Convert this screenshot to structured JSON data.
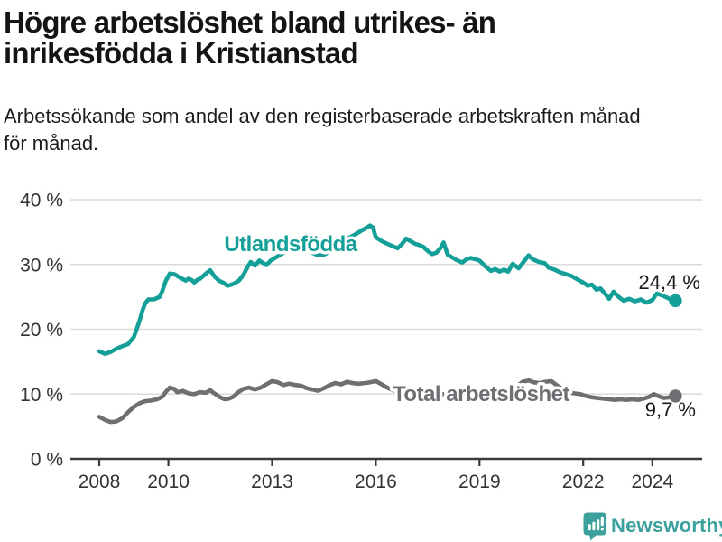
{
  "header": {
    "title": "Högre arbetslöshet bland utrikes- än\ninrikesfödda i Kristianstad",
    "subtitle": "Arbetssökande som andel av den registerbaserade arbetskraften månad\nför månad."
  },
  "chart_data": {
    "type": "line",
    "title": "Högre arbetslöshet bland utrikes- än inrikesfödda i Kristianstad",
    "subtitle": "Arbetssökande som andel av den registerbaserade arbetskraften månad för månad.",
    "xlabel": "",
    "ylabel": "",
    "unit": "%",
    "grid": true,
    "xlim": [
      2008,
      2024.67
    ],
    "ylim": [
      0,
      40
    ],
    "x_axis": {
      "ticks": [
        2008,
        2010,
        2013,
        2016,
        2019,
        2022,
        2024
      ],
      "labels": [
        "2008",
        "2010",
        "2013",
        "2016",
        "2019",
        "2022",
        "2024"
      ]
    },
    "y_axis": {
      "ticks": [
        0,
        10,
        20,
        30,
        40
      ],
      "labels": [
        "0 %",
        "10 %",
        "20 %",
        "30 %",
        "40 %"
      ]
    },
    "colors": {
      "accent_teal": "#14a098",
      "neutral_gray": "#6e6e73",
      "gridline": "#dbdbdb",
      "axis": "#3a3a3c",
      "tick_label": "#333333",
      "value_label": "#1a1a1a"
    },
    "series": [
      {
        "name": "Utlandsfödda",
        "color": "#14a098",
        "end_value": 24.4,
        "end_label": "24,4 %",
        "points": [
          [
            2008.0,
            16.6
          ],
          [
            2008.17,
            16.2
          ],
          [
            2008.33,
            16.5
          ],
          [
            2008.5,
            17.0
          ],
          [
            2008.67,
            17.4
          ],
          [
            2008.83,
            17.7
          ],
          [
            2009.0,
            18.8
          ],
          [
            2009.08,
            20.0
          ],
          [
            2009.17,
            21.4
          ],
          [
            2009.25,
            22.9
          ],
          [
            2009.33,
            24.0
          ],
          [
            2009.42,
            24.6
          ],
          [
            2009.58,
            24.6
          ],
          [
            2009.75,
            25.0
          ],
          [
            2009.83,
            26.0
          ],
          [
            2009.92,
            27.4
          ],
          [
            2010.04,
            28.6
          ],
          [
            2010.17,
            28.5
          ],
          [
            2010.33,
            28.0
          ],
          [
            2010.5,
            27.5
          ],
          [
            2010.58,
            27.8
          ],
          [
            2010.67,
            27.6
          ],
          [
            2010.75,
            27.2
          ],
          [
            2010.83,
            27.6
          ],
          [
            2010.92,
            27.8
          ],
          [
            2011.0,
            28.2
          ],
          [
            2011.13,
            28.8
          ],
          [
            2011.21,
            29.1
          ],
          [
            2011.33,
            28.2
          ],
          [
            2011.46,
            27.5
          ],
          [
            2011.58,
            27.2
          ],
          [
            2011.71,
            26.7
          ],
          [
            2011.83,
            26.9
          ],
          [
            2011.92,
            27.1
          ],
          [
            2012.04,
            27.5
          ],
          [
            2012.17,
            28.4
          ],
          [
            2012.29,
            29.6
          ],
          [
            2012.38,
            30.4
          ],
          [
            2012.5,
            29.8
          ],
          [
            2012.63,
            30.6
          ],
          [
            2012.75,
            30.2
          ],
          [
            2012.83,
            29.9
          ],
          [
            2012.96,
            30.6
          ],
          [
            2013.08,
            31.0
          ],
          [
            2013.21,
            31.4
          ],
          [
            2013.33,
            31.8
          ],
          [
            2013.5,
            32.2
          ],
          [
            2013.67,
            32.5
          ],
          [
            2013.83,
            32.6
          ],
          [
            2014.0,
            32.3
          ],
          [
            2014.17,
            31.8
          ],
          [
            2014.33,
            31.4
          ],
          [
            2014.5,
            31.5
          ],
          [
            2014.67,
            32.0
          ],
          [
            2014.83,
            32.6
          ],
          [
            2015.0,
            33.3
          ],
          [
            2015.17,
            34.0
          ],
          [
            2015.33,
            34.4
          ],
          [
            2015.46,
            34.8
          ],
          [
            2015.58,
            35.2
          ],
          [
            2015.71,
            35.6
          ],
          [
            2015.83,
            36.0
          ],
          [
            2015.92,
            35.7
          ],
          [
            2016.0,
            34.2
          ],
          [
            2016.17,
            33.6
          ],
          [
            2016.33,
            33.2
          ],
          [
            2016.5,
            32.8
          ],
          [
            2016.63,
            32.5
          ],
          [
            2016.75,
            33.1
          ],
          [
            2016.88,
            34.0
          ],
          [
            2017.0,
            33.6
          ],
          [
            2017.13,
            33.2
          ],
          [
            2017.25,
            33.0
          ],
          [
            2017.38,
            32.7
          ],
          [
            2017.5,
            32.1
          ],
          [
            2017.63,
            31.6
          ],
          [
            2017.75,
            31.8
          ],
          [
            2017.88,
            32.6
          ],
          [
            2017.96,
            33.4
          ],
          [
            2018.08,
            31.5
          ],
          [
            2018.17,
            31.2
          ],
          [
            2018.33,
            30.7
          ],
          [
            2018.5,
            30.3
          ],
          [
            2018.63,
            30.8
          ],
          [
            2018.75,
            31.0
          ],
          [
            2018.88,
            30.8
          ],
          [
            2019.0,
            30.6
          ],
          [
            2019.17,
            29.7
          ],
          [
            2019.33,
            29.0
          ],
          [
            2019.46,
            29.3
          ],
          [
            2019.58,
            28.9
          ],
          [
            2019.71,
            29.2
          ],
          [
            2019.83,
            28.9
          ],
          [
            2019.96,
            30.1
          ],
          [
            2020.13,
            29.4
          ],
          [
            2020.29,
            30.5
          ],
          [
            2020.42,
            31.4
          ],
          [
            2020.54,
            30.8
          ],
          [
            2020.71,
            30.4
          ],
          [
            2020.88,
            30.2
          ],
          [
            2021.0,
            29.5
          ],
          [
            2021.17,
            29.2
          ],
          [
            2021.33,
            28.8
          ],
          [
            2021.5,
            28.5
          ],
          [
            2021.67,
            28.2
          ],
          [
            2021.83,
            27.7
          ],
          [
            2022.0,
            27.2
          ],
          [
            2022.13,
            26.7
          ],
          [
            2022.25,
            26.9
          ],
          [
            2022.38,
            26.1
          ],
          [
            2022.5,
            26.3
          ],
          [
            2022.63,
            25.5
          ],
          [
            2022.75,
            24.7
          ],
          [
            2022.88,
            25.8
          ],
          [
            2023.0,
            25.1
          ],
          [
            2023.17,
            24.4
          ],
          [
            2023.33,
            24.7
          ],
          [
            2023.5,
            24.3
          ],
          [
            2023.67,
            24.6
          ],
          [
            2023.83,
            24.1
          ],
          [
            2024.0,
            24.5
          ],
          [
            2024.13,
            25.5
          ],
          [
            2024.29,
            25.2
          ],
          [
            2024.46,
            24.8
          ],
          [
            2024.58,
            24.5
          ],
          [
            2024.67,
            24.4
          ]
        ]
      },
      {
        "name": "Total arbetslöshet",
        "color": "#6e6e73",
        "end_value": 9.7,
        "end_label": "9,7 %",
        "points": [
          [
            2008.0,
            6.5
          ],
          [
            2008.17,
            6.0
          ],
          [
            2008.33,
            5.7
          ],
          [
            2008.5,
            5.8
          ],
          [
            2008.67,
            6.3
          ],
          [
            2008.83,
            7.2
          ],
          [
            2009.0,
            8.0
          ],
          [
            2009.17,
            8.6
          ],
          [
            2009.33,
            8.9
          ],
          [
            2009.5,
            9.0
          ],
          [
            2009.67,
            9.2
          ],
          [
            2009.83,
            9.6
          ],
          [
            2009.92,
            10.3
          ],
          [
            2010.04,
            11.0
          ],
          [
            2010.17,
            10.8
          ],
          [
            2010.25,
            10.3
          ],
          [
            2010.42,
            10.5
          ],
          [
            2010.58,
            10.1
          ],
          [
            2010.75,
            10.0
          ],
          [
            2010.92,
            10.3
          ],
          [
            2011.08,
            10.2
          ],
          [
            2011.21,
            10.6
          ],
          [
            2011.33,
            10.1
          ],
          [
            2011.5,
            9.5
          ],
          [
            2011.63,
            9.2
          ],
          [
            2011.75,
            9.3
          ],
          [
            2011.88,
            9.6
          ],
          [
            2012.0,
            10.2
          ],
          [
            2012.17,
            10.8
          ],
          [
            2012.33,
            11.0
          ],
          [
            2012.5,
            10.7
          ],
          [
            2012.67,
            11.0
          ],
          [
            2012.83,
            11.5
          ],
          [
            2013.0,
            12.0
          ],
          [
            2013.17,
            11.8
          ],
          [
            2013.33,
            11.4
          ],
          [
            2013.5,
            11.6
          ],
          [
            2013.67,
            11.4
          ],
          [
            2013.83,
            11.3
          ],
          [
            2014.0,
            10.9
          ],
          [
            2014.17,
            10.7
          ],
          [
            2014.33,
            10.5
          ],
          [
            2014.5,
            10.9
          ],
          [
            2014.67,
            11.4
          ],
          [
            2014.83,
            11.7
          ],
          [
            2015.0,
            11.5
          ],
          [
            2015.17,
            11.9
          ],
          [
            2015.33,
            11.7
          ],
          [
            2015.5,
            11.6
          ],
          [
            2015.67,
            11.7
          ],
          [
            2015.83,
            11.8
          ],
          [
            2016.0,
            12.0
          ],
          [
            2016.17,
            11.5
          ],
          [
            2016.33,
            11.0
          ],
          [
            2016.5,
            10.6
          ],
          [
            2016.67,
            10.2
          ],
          [
            2016.83,
            10.1
          ],
          [
            2017.0,
            10.0
          ],
          [
            2017.25,
            9.9
          ],
          [
            2017.5,
            10.0
          ],
          [
            2017.75,
            9.9
          ],
          [
            2018.0,
            10.0
          ],
          [
            2018.25,
            9.8
          ],
          [
            2018.5,
            9.9
          ],
          [
            2018.75,
            10.0
          ],
          [
            2019.0,
            10.1
          ],
          [
            2019.25,
            10.2
          ],
          [
            2019.5,
            10.3
          ],
          [
            2019.75,
            10.4
          ],
          [
            2019.92,
            10.6
          ],
          [
            2020.08,
            11.2
          ],
          [
            2020.25,
            11.9
          ],
          [
            2020.42,
            12.1
          ],
          [
            2020.58,
            11.8
          ],
          [
            2020.75,
            11.7
          ],
          [
            2020.92,
            11.9
          ],
          [
            2021.08,
            12.0
          ],
          [
            2021.25,
            11.3
          ],
          [
            2021.42,
            10.7
          ],
          [
            2021.58,
            10.3
          ],
          [
            2021.75,
            10.1
          ],
          [
            2021.92,
            10.0
          ],
          [
            2022.08,
            9.7
          ],
          [
            2022.25,
            9.5
          ],
          [
            2022.42,
            9.4
          ],
          [
            2022.58,
            9.3
          ],
          [
            2022.75,
            9.2
          ],
          [
            2022.92,
            9.1
          ],
          [
            2023.08,
            9.2
          ],
          [
            2023.25,
            9.1
          ],
          [
            2023.42,
            9.2
          ],
          [
            2023.58,
            9.1
          ],
          [
            2023.75,
            9.3
          ],
          [
            2023.92,
            9.6
          ],
          [
            2024.04,
            10.0
          ],
          [
            2024.17,
            9.7
          ],
          [
            2024.33,
            9.4
          ],
          [
            2024.5,
            9.5
          ],
          [
            2024.67,
            9.7
          ]
        ]
      }
    ]
  },
  "footer": {
    "brand": "Newsworthy",
    "logo_color": "#3ca09c",
    "logo_icon": "bar-chart-speech-bubble"
  }
}
